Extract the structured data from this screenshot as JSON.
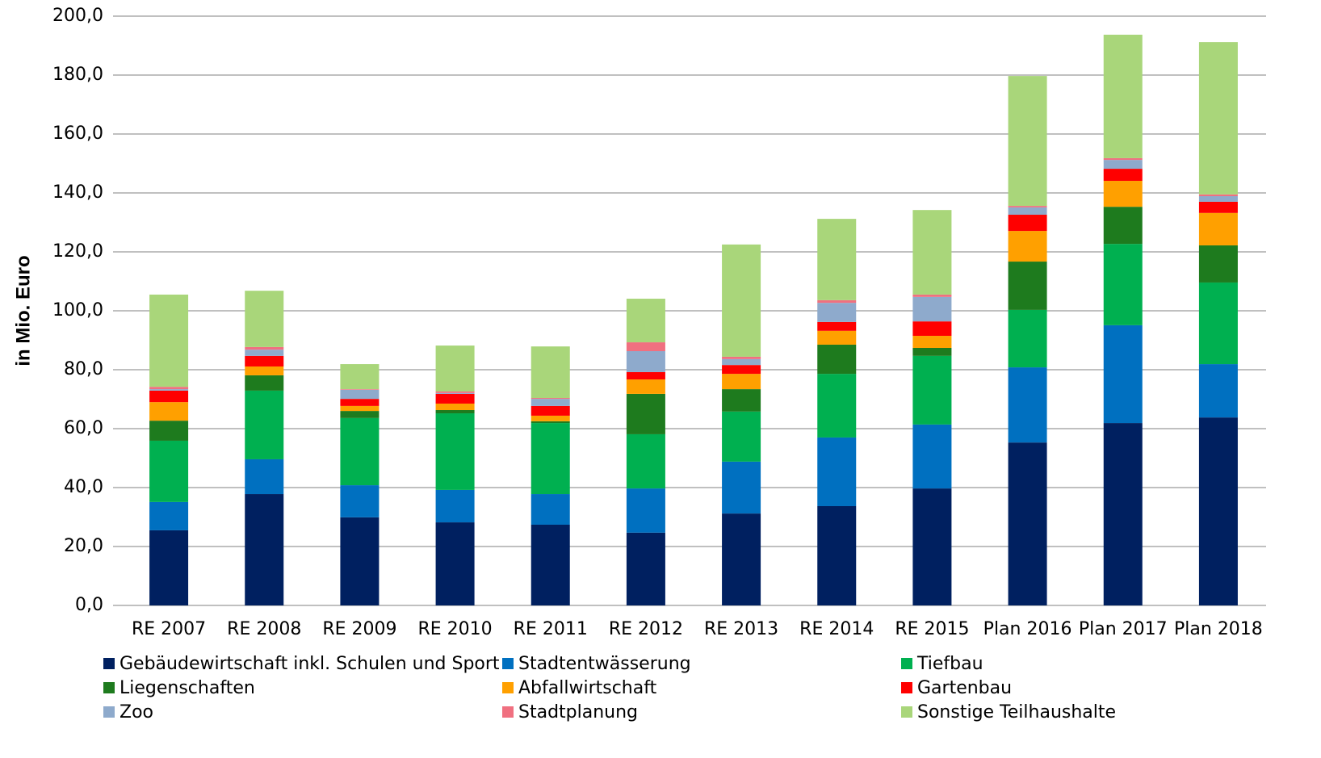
{
  "chart_data": {
    "type": "stacked_bar",
    "y_label": "in Mio. Euro",
    "categories": [
      "RE 2007",
      "RE 2008",
      "RE 2009",
      "RE 2010",
      "RE 2011",
      "RE 2012",
      "RE 2013",
      "RE 2014",
      "RE 2015",
      "Plan 2016",
      "Plan 2017",
      "Plan 2018"
    ],
    "series": [
      {
        "name": "Gebäudewirtschaft inkl. Schulen und Sport",
        "color": "#002060",
        "values": [
          25.5,
          37.8,
          29.9,
          28.2,
          27.4,
          24.7,
          31.2,
          33.7,
          39.7,
          55.3,
          61.9,
          63.8
        ]
      },
      {
        "name": "Stadtentwässerung",
        "color": "#0070c0",
        "values": [
          9.6,
          11.8,
          10.9,
          11.0,
          10.4,
          15.0,
          17.6,
          23.3,
          21.7,
          25.5,
          33.2,
          18.1
        ]
      },
      {
        "name": "Tiefbau",
        "color": "#00b050",
        "values": [
          20.8,
          23.3,
          22.8,
          26.0,
          24.1,
          18.4,
          17.0,
          21.6,
          23.3,
          19.5,
          27.6,
          27.7
        ]
      },
      {
        "name": "Liegenschaften",
        "color": "#1e7b1e",
        "values": [
          6.8,
          5.2,
          2.4,
          1.1,
          0.6,
          13.7,
          7.6,
          9.9,
          2.7,
          16.4,
          12.6,
          12.6
        ]
      },
      {
        "name": "Abfallwirtschaft",
        "color": "#ffa000",
        "values": [
          6.3,
          3.0,
          1.7,
          2.2,
          1.9,
          4.9,
          5.2,
          4.7,
          4.1,
          10.4,
          8.8,
          11.0
        ]
      },
      {
        "name": "Gartenbau",
        "color": "#ff0000",
        "values": [
          3.9,
          3.6,
          2.4,
          3.3,
          3.3,
          2.5,
          3.0,
          3.0,
          4.9,
          5.5,
          4.1,
          3.8
        ]
      },
      {
        "name": "Zoo",
        "color": "#8eaacc",
        "values": [
          0.5,
          2.1,
          3.1,
          0.3,
          2.4,
          7.1,
          2.0,
          6.5,
          8.3,
          2.5,
          3.0,
          1.9
        ]
      },
      {
        "name": "Stadtplanung",
        "color": "#f07080",
        "values": [
          0.8,
          0.9,
          0.2,
          0.5,
          0.3,
          3.0,
          0.8,
          0.9,
          0.8,
          0.5,
          0.6,
          0.6
        ]
      },
      {
        "name": "Sonstige Teilhaushalte",
        "color": "#a9d67a",
        "values": [
          31.3,
          19.1,
          8.5,
          15.6,
          17.5,
          14.8,
          38.1,
          27.6,
          28.7,
          44.1,
          41.9,
          51.7
        ]
      }
    ],
    "ylim": [
      0,
      200
    ],
    "yticks": [
      {
        "value": 0,
        "label": "0,0"
      },
      {
        "value": 20,
        "label": "20,0"
      },
      {
        "value": 40,
        "label": "40,0"
      },
      {
        "value": 60,
        "label": "60,0"
      },
      {
        "value": 80,
        "label": "80,0"
      },
      {
        "value": 100,
        "label": "100,0"
      },
      {
        "value": 120,
        "label": "120,0"
      },
      {
        "value": 140,
        "label": "140,0"
      },
      {
        "value": 160,
        "label": "160,0"
      },
      {
        "value": 180,
        "label": "180,0"
      },
      {
        "value": 200,
        "label": "200,0"
      }
    ],
    "grid": true
  }
}
